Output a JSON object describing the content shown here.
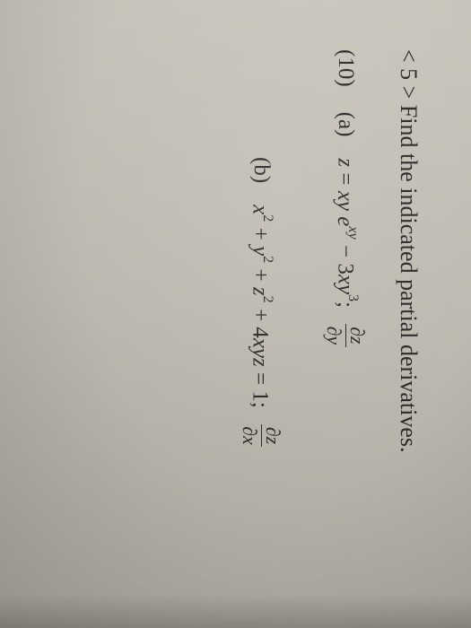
{
  "title": "< 5 > Find the indicated partial derivatives.",
  "problem_number": "(10)",
  "part_a": {
    "label": "(a)",
    "equation_html": "<span class='math'>z</span> = <span class='math'>xy e<sup>xy</sup></span> &minus; 3<span class='math'>xy</span><sup>3</sup>;",
    "derivative_top": "∂z",
    "derivative_bot": "∂y"
  },
  "part_b": {
    "label": "(b)",
    "equation_html": "<span class='math'>x</span><sup>2</sup> + <span class='math'>y</span><sup>2</sup> + <span class='math'>z</span><sup>2</sup> + 4<span class='math'>xyz</span> = 1;",
    "derivative_top": "∂z",
    "derivative_bot": "∂x"
  },
  "style": {
    "background_gradient": [
      "#cac6bd",
      "#bdb9b0",
      "#aba79e"
    ],
    "text_color": "#2a2a2a",
    "title_fontsize": 26,
    "body_fontsize": 25,
    "font_family": "Times New Roman"
  }
}
